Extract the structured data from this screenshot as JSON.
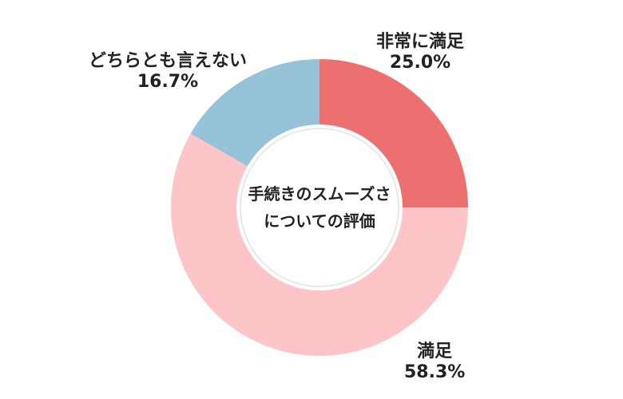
{
  "chart_data": {
    "type": "pie",
    "variant": "donut",
    "center_label": [
      "手続きのスムーズさ",
      "についての評価"
    ],
    "slices": [
      {
        "label": "非常に満足",
        "value": 25.0,
        "value_text": "25.0%",
        "color": "#ec7070"
      },
      {
        "label": "満足",
        "value": 58.3,
        "value_text": "58.3%",
        "color": "#fec5c8"
      },
      {
        "label": "どちらとも言えない",
        "value": 16.7,
        "value_text": "16.7%",
        "color": "#96c3da"
      }
    ]
  }
}
